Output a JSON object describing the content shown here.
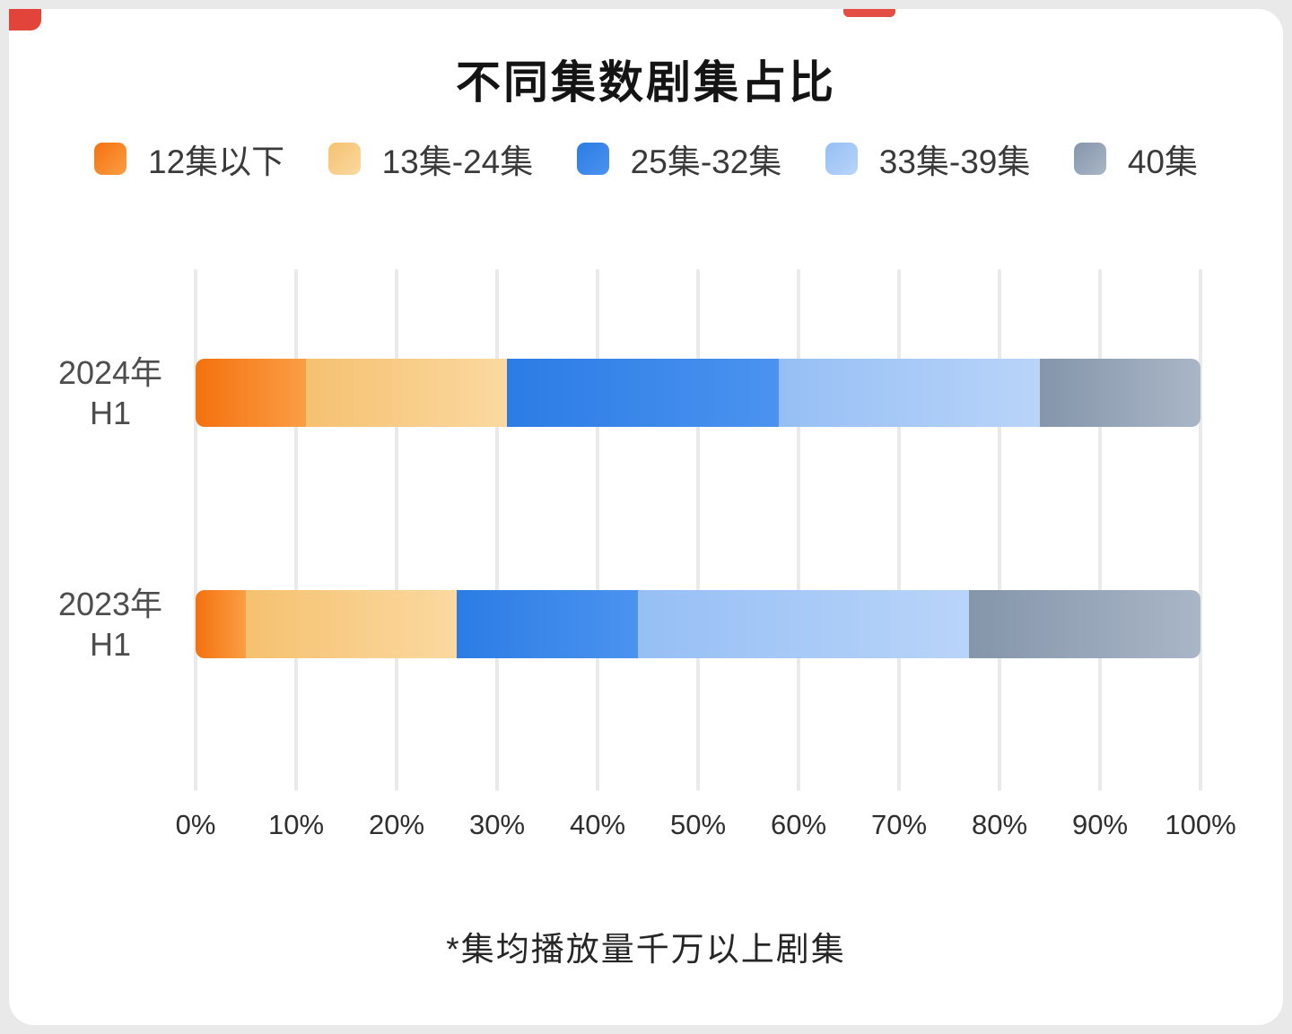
{
  "chart": {
    "title": "不同集数剧集占比",
    "footnote": "*集均播放量千万以上剧集"
  },
  "chart_data": {
    "type": "bar",
    "orientation": "horizontal",
    "stacked": true,
    "title": "不同集数剧集占比",
    "footnote": "*集均播放量千万以上剧集",
    "categories": [
      [
        "2024年",
        "H1"
      ],
      [
        "2023年",
        "H1"
      ]
    ],
    "series": [
      {
        "name": "12集以下",
        "color": "#f4710f",
        "color_end": "#fb9e44",
        "values": [
          11,
          5
        ]
      },
      {
        "name": "13集-24集",
        "color": "#f5c170",
        "color_end": "#fbd9a0",
        "values": [
          20,
          21
        ]
      },
      {
        "name": "25集-32集",
        "color": "#2b7ce5",
        "color_end": "#4b93ef",
        "values": [
          27,
          18
        ]
      },
      {
        "name": "33集-39集",
        "color": "#96bff5",
        "color_end": "#b9d4f9",
        "values": [
          26,
          33
        ]
      },
      {
        "name": "40集",
        "color": "#8595aa",
        "color_end": "#a9b6c7",
        "values": [
          16,
          23
        ]
      }
    ],
    "x_ticks": [
      "0%",
      "10%",
      "20%",
      "30%",
      "40%",
      "50%",
      "60%",
      "70%",
      "80%",
      "90%",
      "100%"
    ],
    "xlim": [
      0,
      100
    ],
    "legend_position": "top",
    "grid": "vertical"
  }
}
